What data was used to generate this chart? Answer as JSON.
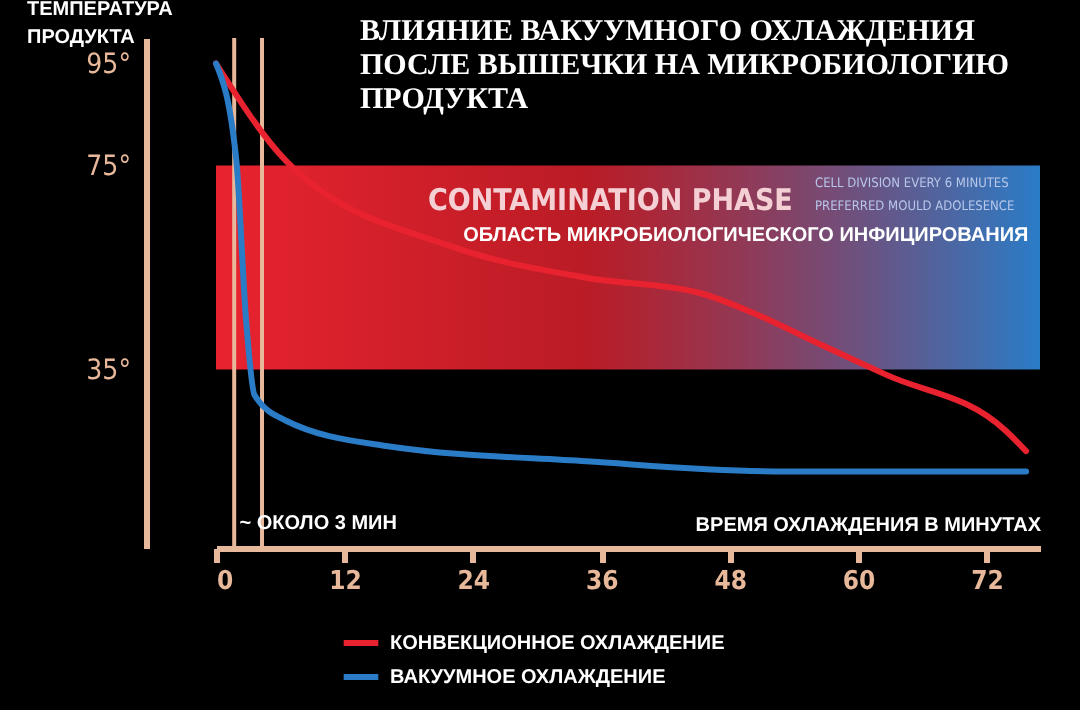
{
  "chart_data": {
    "type": "line",
    "title": "ВЛИЯНИЕ ВАКУУМНОГО ОХЛАЖДЕНИЯ ПОСЛЕ ВЫШЕЧКИ НА МИКРОБИОЛОГИЮ ПРОДУКТА",
    "xlabel": "ВРЕМЯ ОХЛАЖДЕНИЯ В МИНУТАХ",
    "ylabel": "ТЕМПЕРАТУРА ПРОДУКТА",
    "xlim": [
      0,
      77
    ],
    "xticks": [
      0,
      12,
      24,
      36,
      48,
      60,
      72
    ],
    "ylim": [
      0,
      100
    ],
    "yticks": [
      {
        "value": 35,
        "label": "35°"
      },
      {
        "value": 75,
        "label": "75°"
      },
      {
        "value": 95,
        "label": "95°"
      }
    ],
    "series": [
      {
        "name": "КОНВЕКЦИОННОЕ ОХЛАЖДЕНИЕ",
        "color": "#e8232f",
        "x": [
          0,
          6.5,
          22.2,
          34.6,
          45.2,
          50.3,
          56.4,
          62.6,
          73.8,
          75.7
        ],
        "values": [
          95,
          76,
          59,
          53,
          50,
          46,
          40,
          34,
          23,
          19
        ]
      },
      {
        "name": "ВАКУУМНОЕ ОХЛАЖДЕНИЕ",
        "color": "#2a7cc7",
        "x": [
          0,
          1.9,
          2.8,
          3.6,
          6.5,
          15.9,
          34.6,
          53,
          75.7
        ],
        "values": [
          95,
          76,
          45,
          30,
          25,
          20,
          17,
          15,
          15
        ]
      }
    ],
    "bands": [
      {
        "axis": "y",
        "from": 35,
        "to": 75,
        "label": "CONTAMINATION PHASE"
      }
    ],
    "ref_lines": [
      {
        "axis": "x",
        "value": 1.7,
        "color": "#e8b89a"
      },
      {
        "axis": "x",
        "value": 4.3,
        "color": "#e8b89a"
      }
    ],
    "annotations": [
      {
        "text": "~  ОКОЛО 3 МИН",
        "x": 2.2,
        "y": 5
      },
      "CELL DIVISION EVERY 6 MINUTES",
      "PREFERRED MOULD ADOLESENCE",
      "ОБЛАСТЬ МИКРОБИОЛОГИЧЕСКОГО ИНФИЦИРОВАНИЯ"
    ],
    "legend": "bottom",
    "grid": false,
    "marker": "none",
    "line_style": "solid"
  }
}
